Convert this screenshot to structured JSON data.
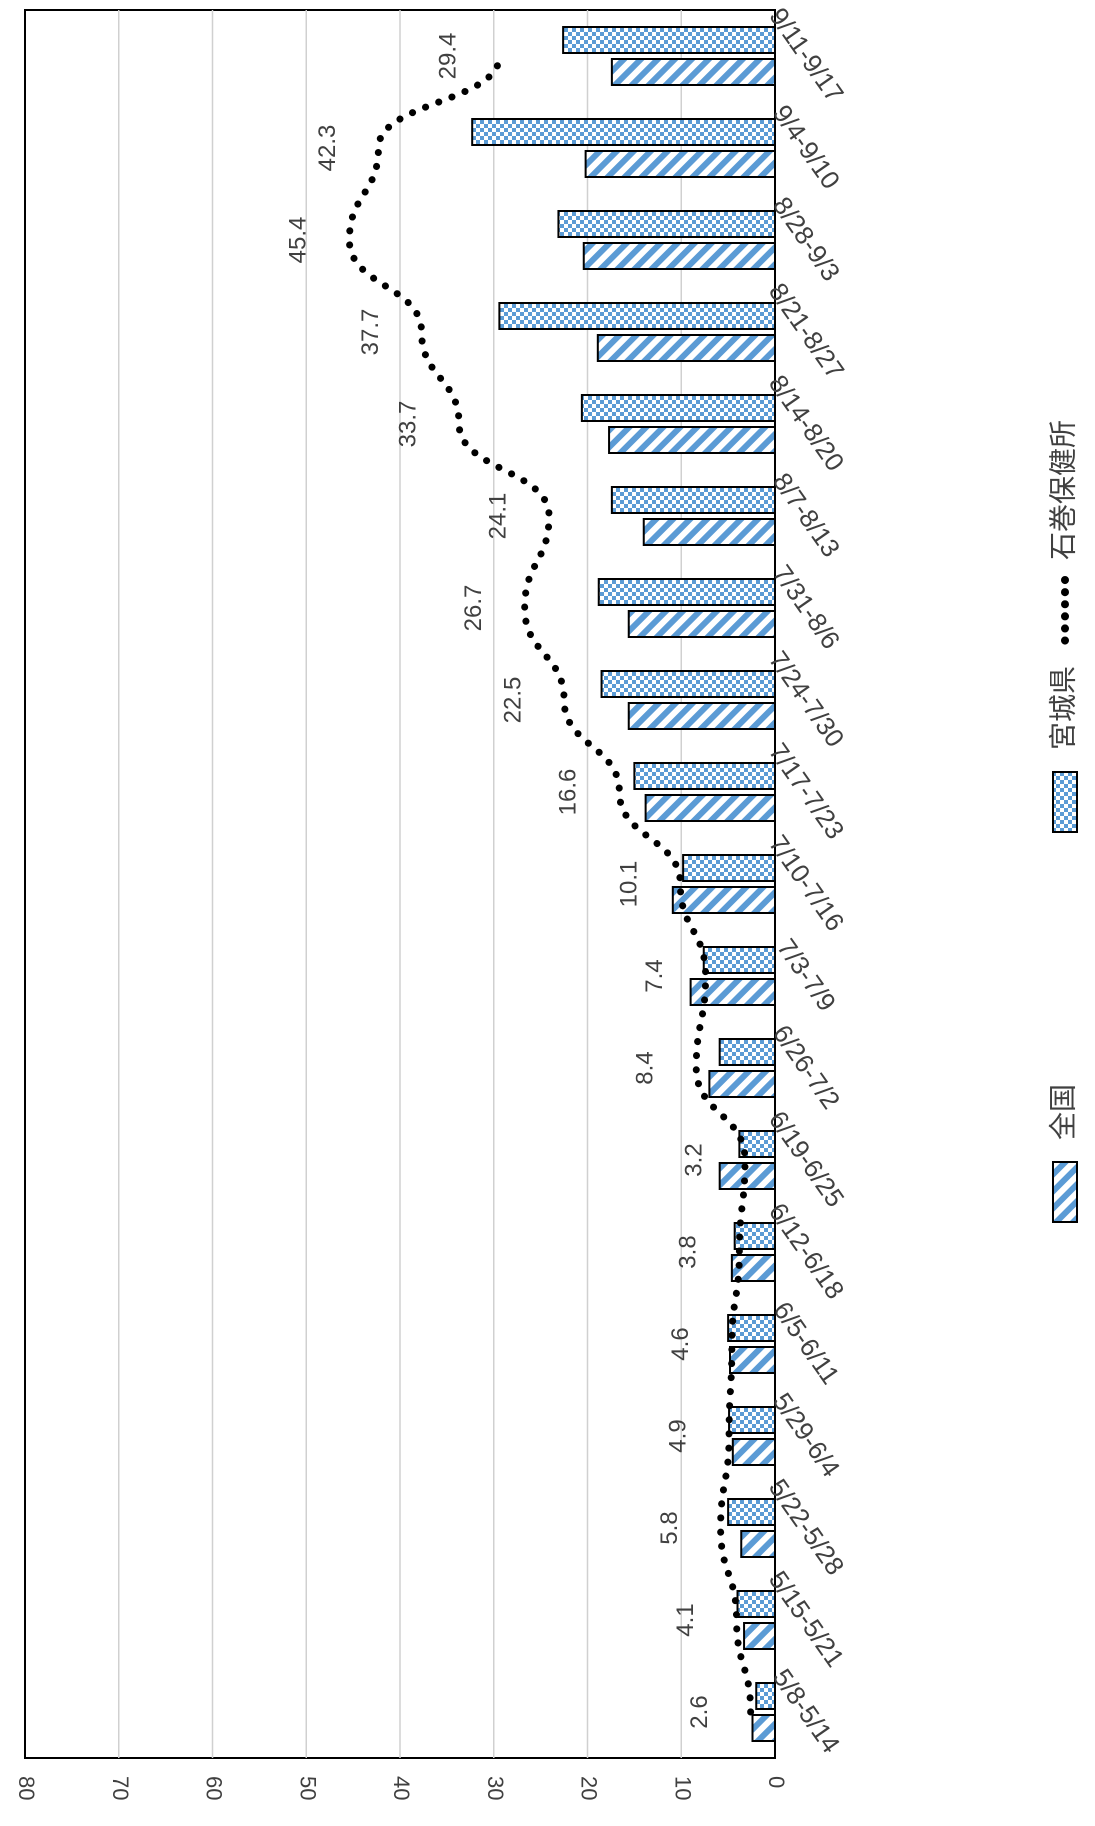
{
  "chart_data": {
    "type": "bar",
    "orientation": "rotated 90° clockwise (value axis along bottom edge, reading 80 → 0 left to right)",
    "categories": [
      "5/8-5/14",
      "5/15-5/21",
      "5/22-5/28",
      "5/29-6/4",
      "6/5-6/11",
      "6/12-6/18",
      "6/19-6/25",
      "6/26-7/2",
      "7/3-7/9",
      "7/10-7/16",
      "7/17-7/23",
      "7/24-7/30",
      "7/31-8/6",
      "8/7-8/13",
      "8/14-8/20",
      "8/21-8/27",
      "8/28-9/3",
      "9/4-9/10",
      "9/11-9/17"
    ],
    "series": [
      {
        "name": "全国",
        "kind": "bar",
        "pattern": "diagonal-stripes",
        "color": "#5b9bd5",
        "values": [
          2.4,
          3.3,
          3.6,
          4.5,
          4.8,
          4.6,
          5.9,
          7.0,
          9.0,
          10.9,
          13.8,
          15.6,
          15.6,
          14.0,
          17.7,
          18.9,
          20.4,
          20.2,
          17.4
        ]
      },
      {
        "name": "宮城県",
        "kind": "bar",
        "pattern": "checkered",
        "color": "#5b9bd5",
        "values": [
          2.0,
          4.0,
          5.0,
          4.9,
          5.0,
          4.3,
          3.8,
          5.9,
          7.6,
          9.8,
          15.0,
          18.5,
          18.8,
          17.4,
          20.6,
          29.4,
          23.1,
          32.3,
          22.6
        ]
      },
      {
        "name": "石巻保健所",
        "kind": "line",
        "style": "dotted",
        "color": "#000000",
        "values": [
          2.6,
          4.1,
          5.8,
          4.9,
          4.6,
          3.8,
          3.2,
          8.4,
          7.4,
          10.1,
          16.6,
          22.5,
          26.7,
          24.1,
          33.7,
          37.7,
          45.4,
          42.3,
          29.4
        ],
        "labels": [
          "2.6",
          "4.1",
          "5.8",
          "4.9",
          "4.6",
          "3.8",
          "3.2",
          "8.4",
          "7.4",
          "10.1",
          "16.6",
          "22.5",
          "26.7",
          "24.1",
          "33.7",
          "37.7",
          "45.4",
          "42.3",
          "29.4"
        ]
      }
    ],
    "value_axis": {
      "min": 0,
      "max": 80,
      "step": 10,
      "ticks": [
        "0",
        "10",
        "20",
        "30",
        "40",
        "50",
        "60",
        "70",
        "80"
      ]
    },
    "grid": true,
    "legend_position": "right side (rotated)",
    "title": "",
    "xlabel": "",
    "ylabel": ""
  }
}
